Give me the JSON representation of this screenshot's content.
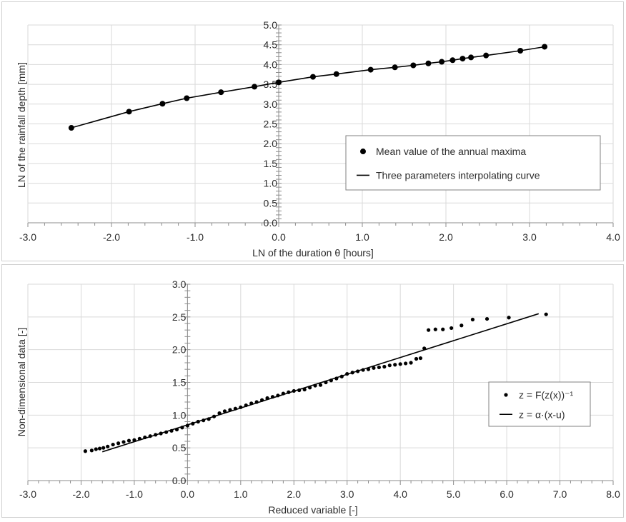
{
  "chart_data": [
    {
      "type": "scatter",
      "xlabel": "LN of the duration θ  [hours]",
      "ylabel": "LN of the rainfall depth  [mm]",
      "xlim": [
        -3.0,
        4.0
      ],
      "ylim": [
        0.0,
        5.0
      ],
      "x_ticks": [
        "-3.0",
        "-2.0",
        "-1.0",
        "0.0",
        "1.0",
        "2.0",
        "3.0",
        "4.0"
      ],
      "y_ticks": [
        "0.0",
        "0.5",
        "1.0",
        "1.5",
        "2.0",
        "2.5",
        "3.0",
        "3.5",
        "4.0",
        "4.5",
        "5.0"
      ],
      "grid": true,
      "legend_position": "right",
      "series": [
        {
          "name": "Mean value of the annual maxima",
          "kind": "points",
          "x": [
            -2.48,
            -1.79,
            -1.39,
            -1.1,
            -0.69,
            -0.29,
            0.0,
            0.41,
            0.69,
            1.1,
            1.39,
            1.61,
            1.79,
            1.95,
            2.08,
            2.2,
            2.3,
            2.48,
            2.89,
            3.18
          ],
          "y": [
            2.4,
            2.81,
            3.01,
            3.15,
            3.3,
            3.44,
            3.55,
            3.69,
            3.76,
            3.87,
            3.93,
            3.98,
            4.03,
            4.07,
            4.11,
            4.15,
            4.18,
            4.23,
            4.35,
            4.45
          ]
        },
        {
          "name": "Three parameters interpolating curve",
          "kind": "line",
          "x": [
            -2.48,
            -1.79,
            -1.39,
            -1.1,
            -0.69,
            -0.29,
            0.0,
            0.41,
            0.69,
            1.1,
            1.39,
            1.61,
            1.79,
            1.95,
            2.08,
            2.2,
            2.3,
            2.48,
            2.89,
            3.18
          ],
          "y": [
            2.4,
            2.81,
            3.01,
            3.15,
            3.3,
            3.44,
            3.55,
            3.69,
            3.76,
            3.87,
            3.93,
            3.98,
            4.03,
            4.07,
            4.11,
            4.15,
            4.18,
            4.23,
            4.35,
            4.45
          ]
        }
      ]
    },
    {
      "type": "scatter",
      "xlabel": "Reduced variable  [-]",
      "ylabel": "Non-dimensional data  [-]",
      "xlim": [
        -3.0,
        8.0
      ],
      "ylim": [
        0.0,
        3.0
      ],
      "x_ticks": [
        "-3.0",
        "-2.0",
        "-1.0",
        "0.0",
        "1.0",
        "2.0",
        "3.0",
        "4.0",
        "5.0",
        "6.0",
        "7.0",
        "8.0"
      ],
      "y_ticks": [
        "0.0",
        "0.5",
        "1.0",
        "1.5",
        "2.0",
        "2.5",
        "3.0"
      ],
      "grid": true,
      "legend_position": "right",
      "series": [
        {
          "name": "z = F(z(x))⁻¹",
          "kind": "points",
          "x": [
            -1.92,
            -1.8,
            -1.72,
            -1.65,
            -1.58,
            -1.5,
            -1.4,
            -1.3,
            -1.2,
            -1.1,
            -1.0,
            -0.9,
            -0.8,
            -0.7,
            -0.6,
            -0.5,
            -0.4,
            -0.3,
            -0.2,
            -0.1,
            0.0,
            0.1,
            0.2,
            0.3,
            0.4,
            0.5,
            0.6,
            0.7,
            0.8,
            0.9,
            1.0,
            1.1,
            1.2,
            1.3,
            1.4,
            1.5,
            1.6,
            1.7,
            1.8,
            1.9,
            2.0,
            2.1,
            2.2,
            2.3,
            2.4,
            2.5,
            2.6,
            2.7,
            2.8,
            2.9,
            3.0,
            3.1,
            3.2,
            3.3,
            3.4,
            3.5,
            3.6,
            3.7,
            3.8,
            3.9,
            4.0,
            4.1,
            4.2,
            4.3,
            4.38,
            4.45,
            4.53,
            4.66,
            4.8,
            4.96,
            5.15,
            5.36,
            5.63,
            6.04,
            6.74
          ],
          "y": [
            0.45,
            0.46,
            0.48,
            0.49,
            0.5,
            0.52,
            0.55,
            0.57,
            0.59,
            0.61,
            0.62,
            0.64,
            0.66,
            0.68,
            0.7,
            0.72,
            0.74,
            0.76,
            0.78,
            0.81,
            0.84,
            0.87,
            0.9,
            0.92,
            0.94,
            0.98,
            1.03,
            1.06,
            1.08,
            1.1,
            1.12,
            1.15,
            1.18,
            1.2,
            1.23,
            1.26,
            1.28,
            1.3,
            1.33,
            1.35,
            1.37,
            1.38,
            1.39,
            1.42,
            1.45,
            1.46,
            1.5,
            1.53,
            1.56,
            1.59,
            1.63,
            1.65,
            1.67,
            1.69,
            1.7,
            1.72,
            1.73,
            1.74,
            1.76,
            1.77,
            1.78,
            1.79,
            1.8,
            1.86,
            1.87,
            2.02,
            2.3,
            2.31,
            2.31,
            2.33,
            2.37,
            2.46,
            2.47,
            2.49,
            2.54
          ]
        },
        {
          "name": "z = α·(x-u)",
          "kind": "line",
          "x": [
            -1.6,
            6.6
          ],
          "y": [
            0.44,
            2.55
          ]
        }
      ]
    }
  ]
}
